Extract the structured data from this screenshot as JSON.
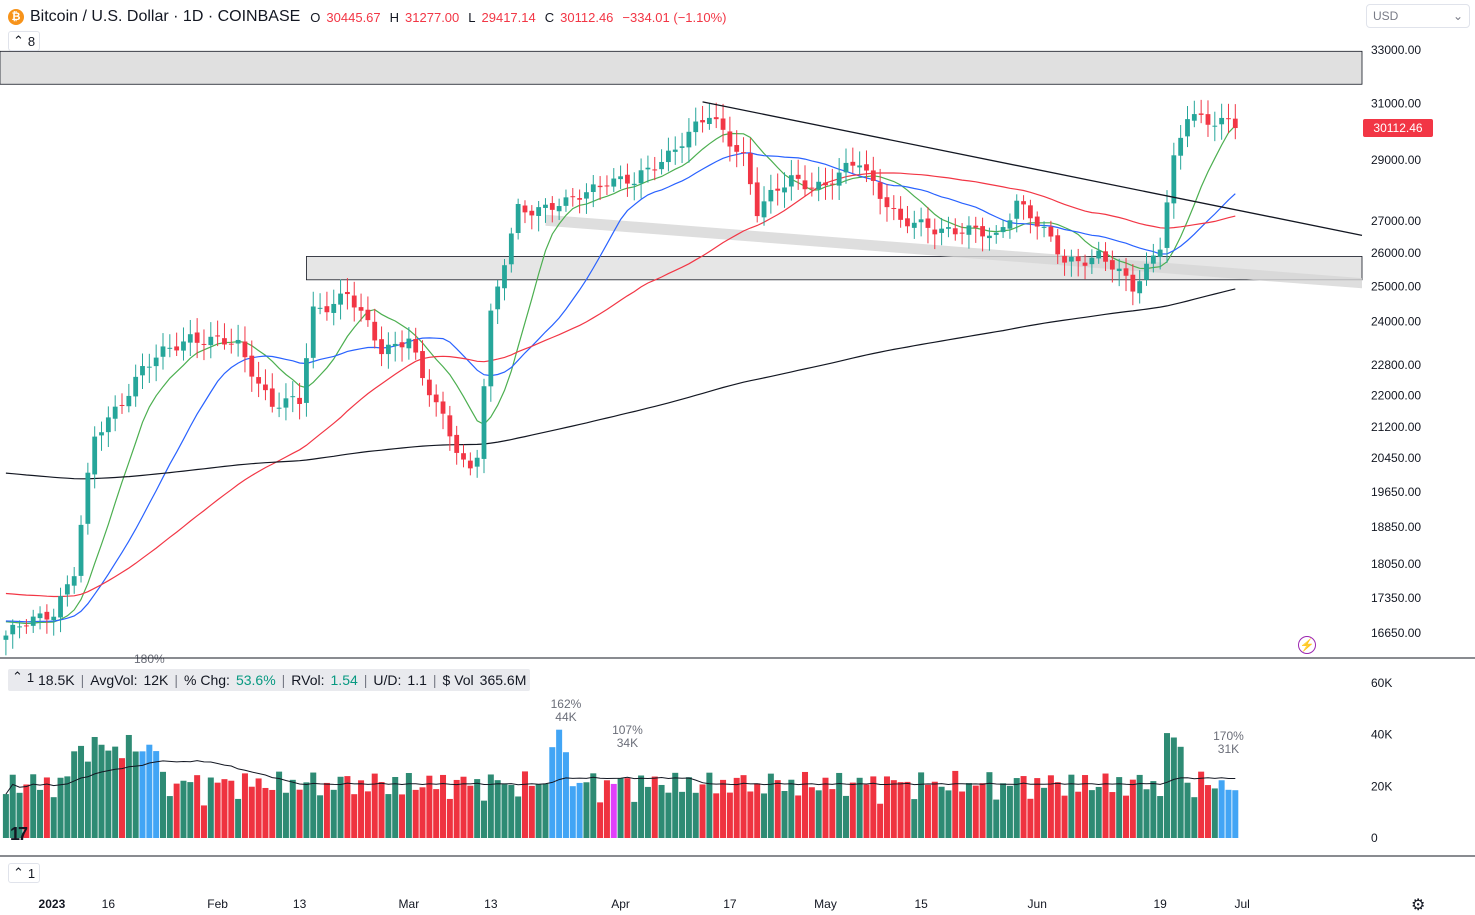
{
  "header": {
    "title": "Bitcoin / U.S. Dollar · 1D · COINBASE",
    "icon": "bitcoin-icon",
    "ohlc": [
      {
        "k": "O",
        "v": "30445.67"
      },
      {
        "k": "H",
        "v": "31277.00"
      },
      {
        "k": "L",
        "v": "29417.14"
      },
      {
        "k": "C",
        "v": "30112.46"
      },
      {
        "k": "",
        "v": "−334.01 (−1.10%)"
      }
    ]
  },
  "legend_toggle": {
    "count": "8",
    "icon": "chevron-up-icon"
  },
  "volume_toggle": {
    "count": "1"
  },
  "bottom_toggle": {
    "count": "1"
  },
  "currency": {
    "label": "USD",
    "icon": "chevron-down-icon"
  },
  "last_price": "30112.46",
  "volume_stats": {
    "vol": "18.5K",
    "avgvol_label": "AvgVol:",
    "avgvol": "12K",
    "chg_label": "% Chg:",
    "chg": "53.6%",
    "rvol_label": "RVol:",
    "rvol": "1.54",
    "ud_label": "U/D:",
    "ud": "1.1",
    "dvol_label": "$ Vol",
    "dvol": "365.6M"
  },
  "colors": {
    "up": "#26a69a",
    "down": "#f23645",
    "ma_green": "#4caf50",
    "ma_blue": "#2962ff",
    "ma_red": "#f23645",
    "ma_black": "#131722",
    "vol_up": "#2e8b74",
    "vol_down": "#ef3340",
    "vol_high": "#42a5f5",
    "vol_magenta": "#e040fb"
  },
  "chart_data": {
    "type": "candlestick",
    "price_axis_ticks": [
      "33000.00",
      "31000.00",
      "29000.00",
      "27000.00",
      "26000.00",
      "25000.00",
      "24000.00",
      "22800.00",
      "22000.00",
      "21200.00",
      "20450.00",
      "19650.00",
      "18850.00",
      "18050.00",
      "17350.00",
      "16650.00"
    ],
    "volume_axis_ticks": [
      "60K",
      "40K",
      "20K",
      "0"
    ],
    "x_axis_labels": [
      "2023",
      "16",
      "Feb",
      "13",
      "Mar",
      "13",
      "Apr",
      "17",
      "May",
      "15",
      "Jun",
      "19",
      "Jul"
    ],
    "volume_annotations": [
      {
        "pct": "180%",
        "value": ""
      },
      {
        "pct": "162%",
        "value": "44K"
      },
      {
        "pct": "107%",
        "value": "34K"
      },
      {
        "pct": "170%",
        "value": "31K"
      }
    ],
    "keypoints_close": [
      [
        "2023-01-01",
        16600
      ],
      [
        "2023-01-08",
        17100
      ],
      [
        "2023-01-11",
        17900
      ],
      [
        "2023-01-13",
        19900
      ],
      [
        "2023-01-14",
        20900
      ],
      [
        "2023-01-21",
        22700
      ],
      [
        "2023-01-28",
        23600
      ],
      [
        "2023-02-04",
        23300
      ],
      [
        "2023-02-09",
        21800
      ],
      [
        "2023-02-13",
        21800
      ],
      [
        "2023-02-15",
        24300
      ],
      [
        "2023-02-20",
        24800
      ],
      [
        "2023-02-25",
        23200
      ],
      [
        "2023-03-01",
        23600
      ],
      [
        "2023-03-03",
        22400
      ],
      [
        "2023-03-09",
        20400
      ],
      [
        "2023-03-10",
        20200
      ],
      [
        "2023-03-11",
        20600
      ],
      [
        "2023-03-13",
        24100
      ],
      [
        "2023-03-17",
        27400
      ],
      [
        "2023-03-24",
        27500
      ],
      [
        "2023-03-30",
        28400
      ],
      [
        "2023-04-03",
        28200
      ],
      [
        "2023-04-10",
        29700
      ],
      [
        "2023-04-14",
        30500
      ],
      [
        "2023-04-19",
        29200
      ],
      [
        "2023-04-21",
        27300
      ],
      [
        "2023-04-26",
        28400
      ],
      [
        "2023-05-01",
        28100
      ],
      [
        "2023-05-06",
        29000
      ],
      [
        "2023-05-12",
        26900
      ],
      [
        "2023-05-18",
        26800
      ],
      [
        "2023-05-26",
        26500
      ],
      [
        "2023-05-29",
        27700
      ],
      [
        "2023-06-05",
        25800
      ],
      [
        "2023-06-10",
        25900
      ],
      [
        "2023-06-15",
        25000
      ],
      [
        "2023-06-19",
        26300
      ],
      [
        "2023-06-21",
        28900
      ],
      [
        "2023-06-23",
        30500
      ],
      [
        "2023-06-29",
        30400
      ],
      [
        "2023-06-30",
        30112
      ]
    ],
    "moving_averages": [
      {
        "name": "",
        "color": "#4caf50",
        "period": 10
      },
      {
        "name": "",
        "color": "#2962ff",
        "period": 21
      },
      {
        "name": "",
        "color": "#f23645",
        "period": 50
      },
      {
        "name": "",
        "color": "#131722",
        "period": 200
      }
    ],
    "last_close": 30112.46,
    "grid": false
  }
}
